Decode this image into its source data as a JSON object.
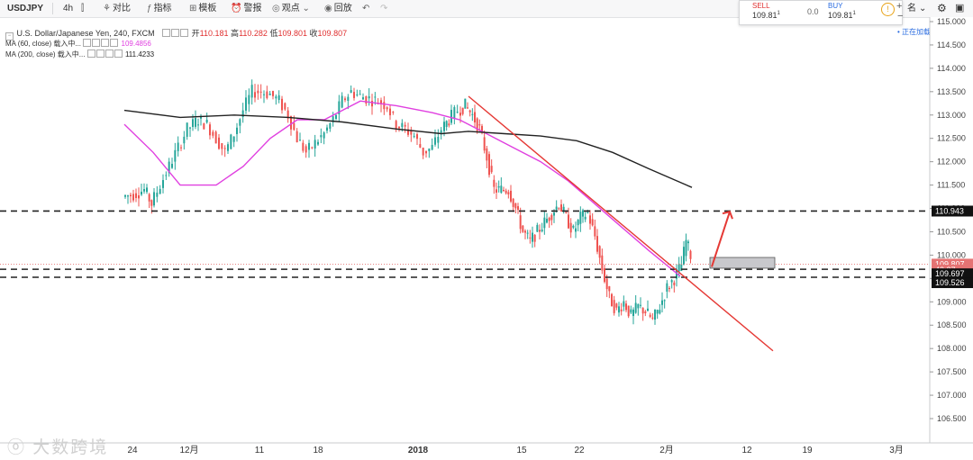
{
  "toolbar": {
    "symbol": "USDJPY",
    "interval": "4h",
    "compare": "对比",
    "indicators": "指标",
    "templates": "模板",
    "alert": "警报",
    "ideas": "观点",
    "replay": "回放"
  },
  "legend": {
    "title": "U.S. Dollar/Japanese Yen, 240, FXCM",
    "open_label": "开",
    "open": "110.181",
    "high_label": "高",
    "high": "110.282",
    "low_label": "低",
    "low": "109.801",
    "close_label": "收",
    "close": "109.807",
    "ma60_label": "MA (60, close) 载入中...",
    "ma60_value": "109.4856",
    "ma200_label": "MA (200, close) 载入中...",
    "ma200_value": "111.4233"
  },
  "trade": {
    "sell_label": "SELL",
    "sell_value": "109.81",
    "sell_sup": "1",
    "spread": "0.0",
    "buy_label": "BUY",
    "buy_value": "109.81",
    "buy_sup": "1"
  },
  "status": {
    "live": "正在加载"
  },
  "watermark": "大数跨境",
  "colors": {
    "up": "#26a69a",
    "down": "#ef5350",
    "ma60": "#e040e0",
    "ma200": "#222222",
    "trendline": "#e53935",
    "price_tag": "#e57373"
  },
  "chart_data": {
    "type": "candlestick",
    "ylim": [
      106.4,
      115.1
    ],
    "y_ticks": [
      "106.500",
      "107.000",
      "107.500",
      "108.000",
      "108.500",
      "109.000",
      "109.500",
      "110.000",
      "110.500",
      "111.000",
      "111.500",
      "112.000",
      "112.500",
      "113.000",
      "113.500",
      "114.000",
      "114.500",
      "115.000"
    ],
    "x_ticks": [
      {
        "label": "24",
        "x": 147
      },
      {
        "label": "12月",
        "x": 210
      },
      {
        "label": "11",
        "x": 288
      },
      {
        "label": "18",
        "x": 353
      },
      {
        "label": "2018",
        "x": 464,
        "bold": true
      },
      {
        "label": "15",
        "x": 579
      },
      {
        "label": "22",
        "x": 643
      },
      {
        "label": "2月",
        "x": 740
      },
      {
        "label": "12",
        "x": 829
      },
      {
        "label": "19",
        "x": 896
      },
      {
        "label": "3月",
        "x": 995
      }
    ],
    "candles": [],
    "ma60": [
      [
        138,
        112.8
      ],
      [
        170,
        112.2
      ],
      [
        200,
        111.5
      ],
      [
        240,
        111.5
      ],
      [
        270,
        111.9
      ],
      [
        300,
        112.5
      ],
      [
        330,
        112.9
      ],
      [
        360,
        112.9
      ],
      [
        380,
        113.1
      ],
      [
        400,
        113.3
      ],
      [
        440,
        113.2
      ],
      [
        480,
        113.05
      ],
      [
        510,
        112.9
      ],
      [
        540,
        112.6
      ],
      [
        570,
        112.3
      ],
      [
        600,
        112.0
      ],
      [
        630,
        111.6
      ],
      [
        660,
        111.1
      ],
      [
        690,
        110.6
      ],
      [
        720,
        110.1
      ],
      [
        755,
        109.55
      ]
    ],
    "ma200": [
      [
        138,
        113.1
      ],
      [
        200,
        112.95
      ],
      [
        260,
        113.0
      ],
      [
        320,
        112.95
      ],
      [
        380,
        112.85
      ],
      [
        440,
        112.7
      ],
      [
        490,
        112.6
      ],
      [
        520,
        112.65
      ],
      [
        560,
        112.6
      ],
      [
        600,
        112.55
      ],
      [
        640,
        112.45
      ],
      [
        680,
        112.2
      ],
      [
        720,
        111.85
      ],
      [
        750,
        111.6
      ],
      [
        768,
        111.45
      ]
    ],
    "hlines": [
      {
        "price": 110.943,
        "label": "110.943",
        "style": "dash"
      },
      {
        "price": 109.697,
        "label": "109.697",
        "style": "dash"
      },
      {
        "price": 109.526,
        "label": "109.526",
        "style": "dash"
      }
    ],
    "trendline": [
      [
        520,
        113.4
      ],
      [
        858,
        107.95
      ]
    ],
    "last_price": "109.807",
    "price_tag_small": "42:37",
    "target_box": {
      "x1": 788,
      "x2": 860,
      "y1": 109.95,
      "y2": 109.72
    },
    "arrow": {
      "from": [
        790,
        109.75
      ],
      "to": [
        810,
        110.93
      ]
    }
  }
}
